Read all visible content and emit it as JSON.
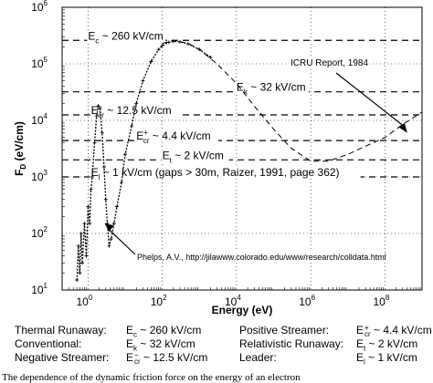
{
  "chart_data": {
    "type": "line",
    "xlabel": "Energy (eV)",
    "ylabel_main": "F",
    "ylabel_sub": "D",
    "ylabel_unit": "(eV/cm)",
    "xscale": "log",
    "yscale": "log",
    "xlim": [
      0.2,
      1000000000
    ],
    "ylim": [
      10,
      1000000
    ],
    "x_ticks": [
      {
        "exp": "0",
        "value": 1
      },
      {
        "exp": "2",
        "value": 100
      },
      {
        "exp": "4",
        "value": 10000
      },
      {
        "exp": "6",
        "value": 1000000
      },
      {
        "exp": "8",
        "value": 100000000
      }
    ],
    "y_ticks": [
      {
        "exp": "1",
        "value": 10
      },
      {
        "exp": "2",
        "value": 100
      },
      {
        "exp": "3",
        "value": 1000
      },
      {
        "exp": "4",
        "value": 10000
      },
      {
        "exp": "5",
        "value": 100000
      },
      {
        "exp": "6",
        "value": 1000000
      }
    ],
    "grid": "dotted, decades",
    "thresholds": [
      {
        "value": 260000,
        "label_main": "E",
        "label_sub": "c",
        "label_sup": "",
        "label_rest": " ~ 260 kV/cm",
        "label_x": 1.0
      },
      {
        "value": 32000,
        "label_main": "E",
        "label_sub": "k",
        "label_sup": "",
        "label_rest": " ~ 32 kV/cm",
        "label_x": 10000
      },
      {
        "value": 12500,
        "label_main": "E",
        "label_sub": "cr",
        "label_sup": "−",
        "label_rest": " ~ 12.5 kV/cm",
        "label_x": 1.2
      },
      {
        "value": 4400,
        "label_main": "E",
        "label_sub": "cr",
        "label_sup": "+",
        "label_rest": " ~ 4.4 kV/cm",
        "label_x": 20
      },
      {
        "value": 2000,
        "label_main": "E",
        "label_sub": "t",
        "label_sup": "",
        "label_rest": " ~ 2 kV/cm",
        "label_x": 100
      },
      {
        "value": 1000,
        "label_main": "E",
        "label_sub": "l",
        "label_sup": "",
        "label_rest": " ~ 1 kV/cm (gaps > 30m, Raizer, 1991, page 362)",
        "label_x": 1.2
      }
    ],
    "series": [
      {
        "style": "dotted-marker",
        "points": [
          [
            0.5,
            15
          ],
          [
            0.55,
            60
          ],
          [
            0.6,
            20
          ],
          [
            0.65,
            100
          ],
          [
            0.7,
            30
          ],
          [
            0.8,
            150
          ],
          [
            0.9,
            40
          ],
          [
            1.0,
            300
          ],
          [
            1.1,
            150
          ],
          [
            1.2,
            600
          ],
          [
            1.3,
            1000
          ],
          [
            1.5,
            4000
          ],
          [
            1.7,
            12000
          ],
          [
            1.9,
            18000
          ],
          [
            2.1,
            16000
          ],
          [
            2.4,
            6000
          ],
          [
            2.7,
            1500
          ],
          [
            3.0,
            400
          ],
          [
            3.3,
            150
          ],
          [
            3.7,
            60
          ],
          [
            4.2,
            80
          ],
          [
            5,
            150
          ],
          [
            6,
            300
          ],
          [
            8,
            800
          ],
          [
            10,
            2500
          ],
          [
            15,
            8000
          ],
          [
            20,
            20000
          ],
          [
            30,
            50000
          ],
          [
            50,
            110000
          ],
          [
            80,
            180000
          ],
          [
            100,
            210000
          ],
          [
            150,
            240000
          ],
          [
            200,
            250000
          ],
          [
            300,
            245000
          ],
          [
            500,
            225000
          ],
          [
            1000,
            180000
          ],
          [
            2000,
            130000
          ]
        ]
      },
      {
        "style": "dashed",
        "name": "ICRU Report, 1984",
        "points": [
          [
            100,
            230000
          ],
          [
            200,
            260000
          ],
          [
            500,
            230000
          ],
          [
            1000,
            180000
          ],
          [
            3000,
            100000
          ],
          [
            10000,
            45000
          ],
          [
            30000,
            18000
          ],
          [
            100000,
            7000
          ],
          [
            300000,
            3200
          ],
          [
            1000000,
            1900
          ],
          [
            3000000,
            1900
          ],
          [
            10000000,
            2500
          ],
          [
            30000000,
            3500
          ],
          [
            100000000,
            5000
          ],
          [
            300000000,
            8500
          ],
          [
            1000000000,
            14000
          ]
        ]
      }
    ],
    "annotations": [
      {
        "text": "ICRU Report, 1984",
        "target_x": 400000000,
        "target_y": 6000
      },
      {
        "text": "Phelps, A.V., http://jilawww.colorado.edu/www/research/colldata.html",
        "target_x": 2.8,
        "target_y": 150
      }
    ]
  },
  "legend": {
    "rows": [
      {
        "left": {
          "label": "Thermal Runaway:",
          "main": "E",
          "sub": "c",
          "sup": "",
          "rest": " ~ 260 kV/cm"
        },
        "right": {
          "label": "Positive Streamer:",
          "main": "E",
          "sub": "cr",
          "sup": "+",
          "rest": " ~ 4.4 kV/cm"
        }
      },
      {
        "left": {
          "label": "Conventional:",
          "main": "E",
          "sub": "k",
          "sup": "",
          "rest": " ~ 32 kV/cm"
        },
        "right": {
          "label": "Relativistic Runaway:",
          "main": "E",
          "sub": "t",
          "sup": "",
          "rest": " ~ 2 kV/cm"
        }
      },
      {
        "left": {
          "label": "Negative Streamer:",
          "main": "E",
          "sub": "cr",
          "sup": "−",
          "rest": " ~ 12.5 kV/cm"
        },
        "right": {
          "label": "Leader:",
          "main": "E",
          "sub": "l",
          "sup": "",
          "rest": " ~ 1 kV/cm"
        }
      }
    ]
  },
  "caption": "The dependence of the dynamic friction force on the energy of an electron"
}
